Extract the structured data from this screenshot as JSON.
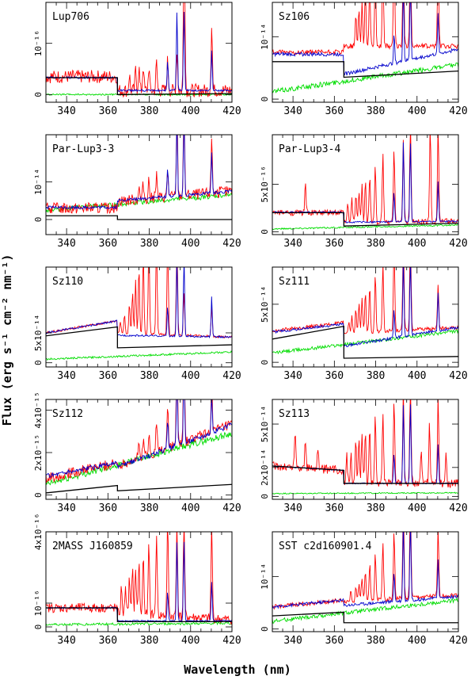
{
  "figure": {
    "ylabel": "Flux (erg s⁻¹ cm⁻² nm⁻¹)",
    "xlabel": "Wavelength (nm)"
  },
  "colors": {
    "observed": "#ff0000",
    "fit": "#0000cc",
    "chromosphere": "#00dd00",
    "photosphere": "#000000"
  },
  "chart_data": [
    {
      "type": "line",
      "title": "Lup706",
      "xlim": [
        330,
        420
      ],
      "xticks": [
        "340",
        "360",
        "380",
        "400",
        "420"
      ],
      "yticks": [
        {
          "value": 0,
          "label": "0"
        },
        {
          "value": 1,
          "label": "10⁻¹⁶"
        }
      ],
      "ylim": [
        -0.15,
        1.8
      ],
      "series": {
        "photosphere": {
          "blue_level": 0.33,
          "red_start": 0.0,
          "red_end": 0.02,
          "seed": 11
        },
        "fit": {
          "blue": 0.33,
          "red": 0.08,
          "noise": 0.02
        },
        "chromosphere": {
          "level": 0.0,
          "noise": 0.015
        },
        "observed": {
          "blue": 0.35,
          "red": 0.08,
          "noise": 0.13,
          "lines": [
            [
              370.4,
              0.3
            ],
            [
              373.4,
              0.4
            ],
            [
              375.0,
              0.45
            ],
            [
              377.1,
              0.5
            ],
            [
              379.8,
              0.45
            ],
            [
              383.5,
              0.55
            ],
            [
              388.9,
              0.6
            ],
            [
              393.4,
              0.8
            ],
            [
              396.8,
              1.8
            ],
            [
              397.0,
              1.5
            ],
            [
              410.2,
              1.3
            ]
          ]
        }
      }
    },
    {
      "type": "line",
      "title": "Sz106",
      "xlim": [
        330,
        420
      ],
      "xticks": [
        "340",
        "360",
        "380",
        "400",
        "420"
      ],
      "yticks": [
        {
          "value": 0,
          "label": "0"
        },
        {
          "value": 1,
          "label": "10⁻¹⁴"
        }
      ],
      "ylim": [
        -0.05,
        1.55
      ],
      "series": {
        "photosphere": {
          "blue_level": 0.6,
          "red_start": 0.35,
          "red_end": 0.45,
          "seed": 12
        },
        "fit": {
          "blue": 0.72,
          "red": 0.4,
          "red_end": 0.8,
          "noise": 0.03
        },
        "chromosphere": {
          "level": 0.12,
          "level_end": 0.55,
          "noise": 0.04
        },
        "observed": {
          "blue": 0.75,
          "red": 0.85,
          "noise": 0.04,
          "lines": [
            [
              370.4,
              0.5
            ],
            [
              371.9,
              0.6
            ],
            [
              373.4,
              0.7
            ],
            [
              375.0,
              0.9
            ],
            [
              377.1,
              1.0
            ],
            [
              379.8,
              1.2
            ],
            [
              383.5,
              1.4
            ],
            [
              388.9,
              1.55
            ],
            [
              393.4,
              1.55
            ],
            [
              396.8,
              1.55
            ],
            [
              410.2,
              1.55
            ]
          ]
        }
      }
    },
    {
      "type": "line",
      "title": "Par-Lup3-3",
      "xlim": [
        330,
        420
      ],
      "xticks": [
        "340",
        "360",
        "380",
        "400",
        "420"
      ],
      "yticks": [
        {
          "value": 0,
          "label": "0"
        },
        {
          "value": 1,
          "label": "10⁻¹⁴"
        }
      ],
      "ylim": [
        -0.4,
        2.25
      ],
      "series": {
        "photosphere": {
          "blue_level": 0.1,
          "red_start": 0.0,
          "red_end": 0.0,
          "seed": 13
        },
        "fit": {
          "blue": 0.32,
          "red": 0.5,
          "red_end": 0.75,
          "noise": 0.04
        },
        "chromosphere": {
          "level": 0.25,
          "level_end": 0.65,
          "noise": 0.06
        },
        "observed": {
          "blue": 0.3,
          "red": 0.5,
          "red_end": 0.75,
          "noise": 0.15,
          "lines": [
            [
              375.0,
              0.3
            ],
            [
              377.1,
              0.4
            ],
            [
              379.8,
              0.5
            ],
            [
              383.5,
              0.6
            ],
            [
              388.9,
              0.7
            ],
            [
              393.4,
              2.25
            ],
            [
              396.8,
              2.25
            ],
            [
              410.2,
              1.5
            ]
          ]
        }
      }
    },
    {
      "type": "line",
      "title": "Par-Lup3-4",
      "xlim": [
        330,
        420
      ],
      "xticks": [
        "340",
        "360",
        "380",
        "400",
        "420"
      ],
      "yticks": [
        {
          "value": 0,
          "label": "0"
        },
        {
          "value": 5,
          "label": "5x10⁻¹⁶"
        }
      ],
      "ylim": [
        -0.3,
        10.2
      ],
      "series": {
        "photosphere": {
          "blue_level": 2.0,
          "red_start": 0.6,
          "red_end": 0.9,
          "seed": 14
        },
        "fit": {
          "blue": 2.05,
          "red": 1.0,
          "red_end": 1.1,
          "noise": 0.08
        },
        "chromosphere": {
          "level": 0.3,
          "level_end": 0.7,
          "noise": 0.08
        },
        "observed": {
          "blue": 2.0,
          "red": 1.0,
          "red_end": 1.1,
          "noise": 0.3,
          "lines": [
            [
              346.0,
              3.0
            ],
            [
              366.5,
              1.8
            ],
            [
              368.5,
              2.5
            ],
            [
              370.4,
              3.0
            ],
            [
              371.9,
              3.5
            ],
            [
              373.4,
              4.0
            ],
            [
              375.0,
              4.5
            ],
            [
              377.1,
              5.0
            ],
            [
              379.8,
              6.0
            ],
            [
              383.5,
              7.0
            ],
            [
              388.9,
              8.0
            ],
            [
              393.4,
              9.0
            ],
            [
              396.8,
              10.2
            ],
            [
              406.4,
              10.2
            ],
            [
              410.2,
              10.2
            ]
          ]
        }
      }
    },
    {
      "type": "line",
      "title": "Sz110",
      "xlim": [
        330,
        420
      ],
      "xticks": [
        "340",
        "360",
        "380",
        "400",
        "420"
      ],
      "yticks": [
        {
          "value": 0,
          "label": "0"
        },
        {
          "value": 5,
          "label": "5x10⁻¹⁴"
        }
      ],
      "ylim": [
        -0.7,
        16.0
      ],
      "series": {
        "photosphere": {
          "blue_level": 4.5,
          "blue_start": 4.5,
          "blue_end": 6.0,
          "red_start": 2.5,
          "red_end": 3.0,
          "seed": 15
        },
        "fit": {
          "blue": 5.0,
          "blue_end": 7.0,
          "red": 4.6,
          "red_end": 4.3,
          "noise": 0.15
        },
        "chromosphere": {
          "level": 0.6,
          "level_end": 1.8,
          "noise": 0.15
        },
        "observed": {
          "blue": 5.0,
          "blue_end": 7.0,
          "red": 5.0,
          "red_end": 4.3,
          "noise": 0.2,
          "lines": [
            [
              366.0,
              2.0
            ],
            [
              368.0,
              3.0
            ],
            [
              370.4,
              5.0
            ],
            [
              371.9,
              7.0
            ],
            [
              373.4,
              9.0
            ],
            [
              375.0,
              11.0
            ],
            [
              377.1,
              13.0
            ],
            [
              379.8,
              16.0
            ],
            [
              383.5,
              16.0
            ],
            [
              388.9,
              16.0
            ],
            [
              393.4,
              16.0
            ],
            [
              396.8,
              7.0
            ],
            [
              410.2,
              5.0
            ]
          ]
        }
      }
    },
    {
      "type": "line",
      "title": "Sz111",
      "xlim": [
        330,
        420
      ],
      "xticks": [
        "340",
        "360",
        "380",
        "400",
        "420"
      ],
      "yticks": [
        {
          "value": 0,
          "label": "0"
        },
        {
          "value": 5,
          "label": "5x10⁻¹⁴"
        }
      ],
      "ylim": [
        -0.4,
        8.2
      ],
      "series": {
        "photosphere": {
          "blue_level": 2.0,
          "blue_start": 2.0,
          "blue_end": 3.1,
          "red_start": 0.35,
          "red_end": 0.5,
          "seed": 16
        },
        "fit": {
          "blue": 2.6,
          "blue_end": 3.3,
          "red": 1.4,
          "red_end": 3.0,
          "noise": 0.12
        },
        "chromosphere": {
          "level": 0.8,
          "level_end": 2.7,
          "noise": 0.15
        },
        "observed": {
          "blue": 2.7,
          "blue_end": 3.4,
          "red": 2.5,
          "red_end": 3.0,
          "noise": 0.15,
          "lines": [
            [
              367.0,
              1.0
            ],
            [
              368.5,
              1.5
            ],
            [
              370.4,
              2.0
            ],
            [
              371.9,
              2.5
            ],
            [
              373.4,
              3.0
            ],
            [
              375.0,
              3.5
            ],
            [
              377.1,
              4.0
            ],
            [
              379.8,
              5.0
            ],
            [
              383.5,
              6.0
            ],
            [
              388.9,
              7.5
            ],
            [
              393.4,
              8.2
            ],
            [
              396.8,
              8.2
            ],
            [
              410.2,
              3.8
            ]
          ]
        }
      }
    },
    {
      "type": "line",
      "title": "Sz112",
      "xlim": [
        330,
        420
      ],
      "xticks": [
        "340",
        "360",
        "380",
        "400",
        "420"
      ],
      "yticks": [
        {
          "value": 0,
          "label": "0"
        },
        {
          "value": 2,
          "label": "2x10⁻¹⁵"
        },
        {
          "value": 4,
          "label": "4x10⁻¹⁵"
        }
      ],
      "ylim": [
        -0.2,
        4.5
      ],
      "series": {
        "photosphere": {
          "blue_level": 0.3,
          "blue_start": 0.1,
          "blue_end": 0.45,
          "red_start": 0.2,
          "red_end": 0.5,
          "seed": 17
        },
        "fit": {
          "blue": 0.9,
          "blue_end": 1.5,
          "red": 1.3,
          "red_end": 3.3,
          "noise": 0.12
        },
        "chromosphere": {
          "level": 0.5,
          "level_end": 2.9,
          "noise": 0.15
        },
        "observed": {
          "blue": 0.8,
          "blue_end": 1.5,
          "red": 1.4,
          "red_end": 3.3,
          "noise": 0.25,
          "lines": [
            [
              375.0,
              0.6
            ],
            [
              377.1,
              0.8
            ],
            [
              379.8,
              1.0
            ],
            [
              383.5,
              1.5
            ],
            [
              388.9,
              2.0
            ],
            [
              393.4,
              4.5
            ],
            [
              396.8,
              4.5
            ],
            [
              410.2,
              2.5
            ]
          ]
        }
      }
    },
    {
      "type": "line",
      "title": "Sz113",
      "xlim": [
        330,
        420
      ],
      "xticks": [
        "340",
        "360",
        "380",
        "400",
        "420"
      ],
      "yticks": [
        {
          "value": 0,
          "label": "0"
        },
        {
          "value": 2,
          "label": "2x10⁻¹⁴"
        },
        {
          "value": 5,
          "label": "5x10⁻¹⁴"
        }
      ],
      "ylim": [
        -0.2,
        6.7
      ],
      "series": {
        "photosphere": {
          "blue_level": 2.0,
          "blue_start": 2.1,
          "blue_end": 1.8,
          "red_start": 0.9,
          "red_end": 0.9,
          "seed": 18
        },
        "fit": {
          "blue": 2.1,
          "blue_end": 1.8,
          "red": 0.9,
          "red_end": 0.9,
          "noise": 0.04
        },
        "chromosphere": {
          "level": 0.2,
          "level_end": 0.25,
          "noise": 0.04
        },
        "observed": {
          "blue": 2.1,
          "blue_end": 1.8,
          "red": 1.0,
          "red_end": 0.9,
          "noise": 0.3,
          "lines": [
            [
              341.0,
              2.5
            ],
            [
              346.0,
              2.0
            ],
            [
              352.0,
              1.5
            ],
            [
              366.0,
              2.0
            ],
            [
              368.0,
              2.0
            ],
            [
              370.4,
              3.0
            ],
            [
              371.9,
              3.0
            ],
            [
              373.4,
              3.5
            ],
            [
              375.0,
              3.5
            ],
            [
              377.1,
              4.0
            ],
            [
              379.8,
              4.5
            ],
            [
              383.5,
              5.0
            ],
            [
              388.9,
              6.0
            ],
            [
              393.4,
              6.7
            ],
            [
              396.8,
              6.7
            ],
            [
              402.0,
              2.0
            ],
            [
              406.0,
              4.0
            ],
            [
              410.2,
              6.0
            ],
            [
              414.0,
              2.0
            ]
          ]
        }
      }
    },
    {
      "type": "line",
      "title": "2MASS J160859",
      "xlim": [
        330,
        420
      ],
      "xticks": [
        "340",
        "360",
        "380",
        "400",
        "420"
      ],
      "yticks": [
        {
          "value": 0,
          "label": "0"
        },
        {
          "value": 1,
          "label": "10⁻¹⁶"
        },
        {
          "value": 4,
          "label": "4x10⁻¹⁶"
        }
      ],
      "ylim": [
        -0.2,
        4.0
      ],
      "series": {
        "photosphere": {
          "blue_level": 0.8,
          "red_start": 0.22,
          "red_end": 0.22,
          "seed": 19
        },
        "fit": {
          "blue": 0.8,
          "red": 0.25,
          "red_end": 0.25,
          "noise": 0.03
        },
        "chromosphere": {
          "level": 0.1,
          "level_end": 0.15,
          "noise": 0.05
        },
        "observed": {
          "blue": 0.8,
          "red": 0.6,
          "red_end": 0.3,
          "noise": 0.2,
          "lines": [
            [
              366.5,
              1.0
            ],
            [
              368.5,
              1.2
            ],
            [
              370.4,
              1.5
            ],
            [
              371.9,
              1.8
            ],
            [
              373.4,
              2.0
            ],
            [
              375.0,
              2.3
            ],
            [
              377.1,
              2.5
            ],
            [
              379.8,
              3.0
            ],
            [
              383.5,
              3.5
            ],
            [
              388.9,
              4.0
            ],
            [
              393.4,
              4.0
            ],
            [
              396.8,
              4.0
            ],
            [
              410.2,
              4.0
            ]
          ]
        }
      }
    },
    {
      "type": "line",
      "title": "SST c2d160901.4",
      "xlim": [
        330,
        420
      ],
      "xticks": [
        "340",
        "360",
        "380",
        "400",
        "420"
      ],
      "yticks": [
        {
          "value": 0,
          "label": "0"
        },
        {
          "value": 1,
          "label": "10⁻¹⁴"
        }
      ],
      "ylim": [
        -0.05,
        1.85
      ],
      "series": {
        "photosphere": {
          "blue_level": 0.25,
          "blue_start": 0.25,
          "blue_end": 0.32,
          "red_start": 0.12,
          "red_end": 0.12,
          "seed": 20
        },
        "fit": {
          "blue": 0.42,
          "blue_end": 0.55,
          "red": 0.45,
          "red_end": 0.62,
          "noise": 0.03
        },
        "chromosphere": {
          "level": 0.15,
          "level_end": 0.55,
          "noise": 0.04
        },
        "observed": {
          "blue": 0.42,
          "blue_end": 0.55,
          "red": 0.52,
          "red_end": 0.65,
          "noise": 0.04,
          "lines": [
            [
              368.0,
              0.2
            ],
            [
              370.4,
              0.3
            ],
            [
              371.9,
              0.35
            ],
            [
              373.4,
              0.45
            ],
            [
              375.0,
              0.55
            ],
            [
              377.1,
              0.7
            ],
            [
              379.8,
              0.9
            ],
            [
              383.5,
              1.1
            ],
            [
              388.9,
              1.3
            ],
            [
              393.4,
              1.85
            ],
            [
              396.8,
              1.85
            ],
            [
              410.2,
              1.3
            ]
          ]
        }
      }
    }
  ]
}
